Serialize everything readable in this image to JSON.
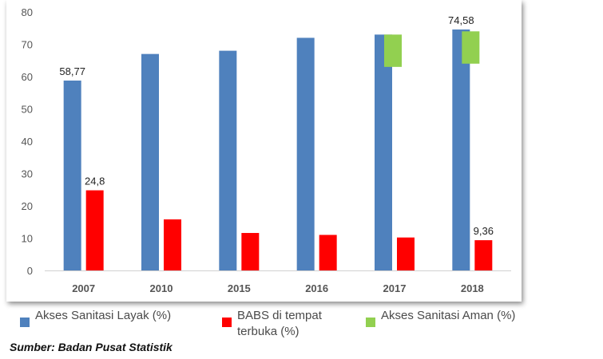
{
  "chart_data": {
    "type": "bar",
    "categories": [
      "2007",
      "2010",
      "2015",
      "2016",
      "2017",
      "2018"
    ],
    "series": [
      {
        "name": "Akses Sanitasi Layak (%)",
        "color": "#4F81BD",
        "values": [
          58.77,
          67,
          68,
          72,
          73,
          74.58
        ],
        "labels": [
          "58,77",
          "",
          "",
          "",
          "",
          "74,58"
        ]
      },
      {
        "name": "BABS di tempat terbuka (%)",
        "color": "#FF0000",
        "values": [
          24.8,
          15.8,
          11.6,
          11,
          10.2,
          9.36
        ],
        "labels": [
          "24,8",
          "",
          "",
          "",
          "",
          "9,36"
        ]
      },
      {
        "name": "Akses Sanitasi Aman (%)",
        "color": "#92D050",
        "ranges": [
          null,
          null,
          null,
          null,
          [
            63,
            73
          ],
          [
            64,
            74
          ]
        ]
      }
    ],
    "ylim": [
      0,
      80
    ],
    "yticks": [
      "0",
      "10",
      "20",
      "30",
      "40",
      "50",
      "60",
      "70",
      "80"
    ],
    "legend_position": "bottom",
    "source": "Sumber: Badan Pusat Statistik"
  }
}
